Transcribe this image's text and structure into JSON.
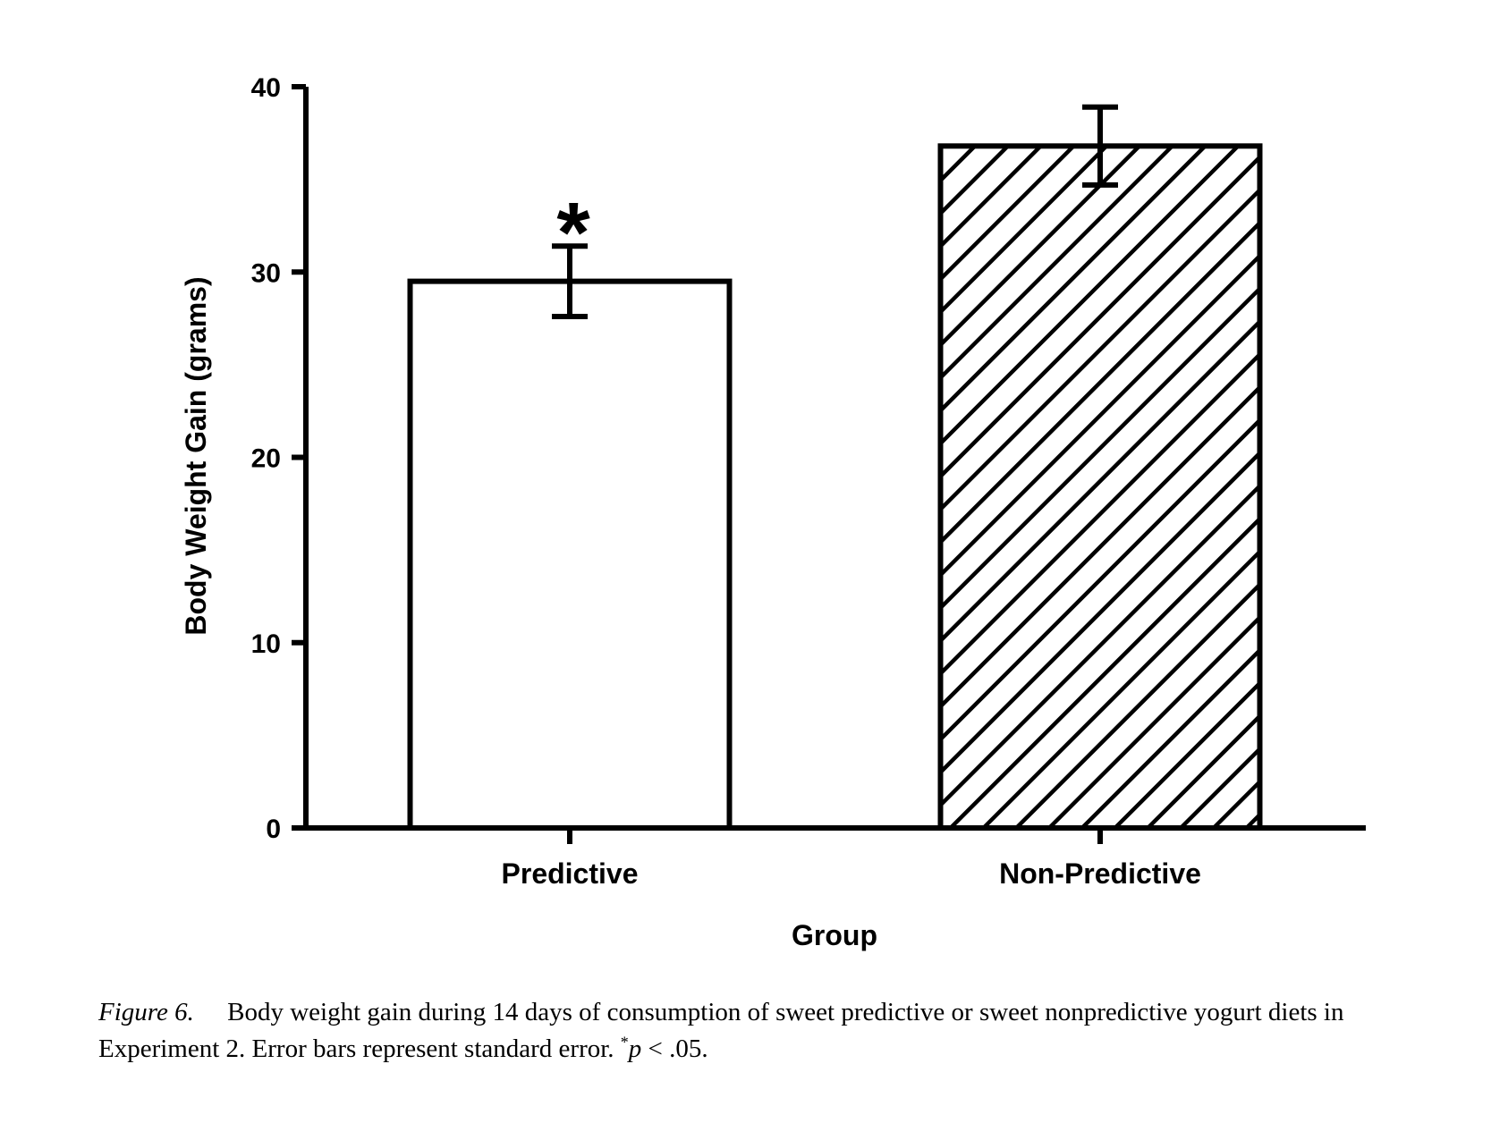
{
  "chart_data": {
    "type": "bar",
    "categories": [
      "Predictive",
      "Non-Predictive"
    ],
    "values": [
      29.5,
      36.8
    ],
    "error": [
      1.9,
      2.1
    ],
    "fills": [
      "none",
      "hatched"
    ],
    "significance": [
      "*",
      ""
    ],
    "xlabel": "Group",
    "ylabel": "Body Weight Gain (grams)",
    "ylim": [
      0,
      40
    ],
    "yticks": [
      0,
      10,
      20,
      30,
      40
    ],
    "grid": false,
    "legend": "none"
  },
  "caption": {
    "label": "Figure 6.",
    "text": "Body weight gain during 14 days of consumption of sweet predictive or sweet nonpredictive yogurt diets in Experiment 2. Error bars represent standard error.",
    "sig_marker": "*",
    "p_symbol": "p",
    "p_text": "< .05."
  },
  "colors": {
    "ink": "#000000",
    "background": "#ffffff"
  }
}
